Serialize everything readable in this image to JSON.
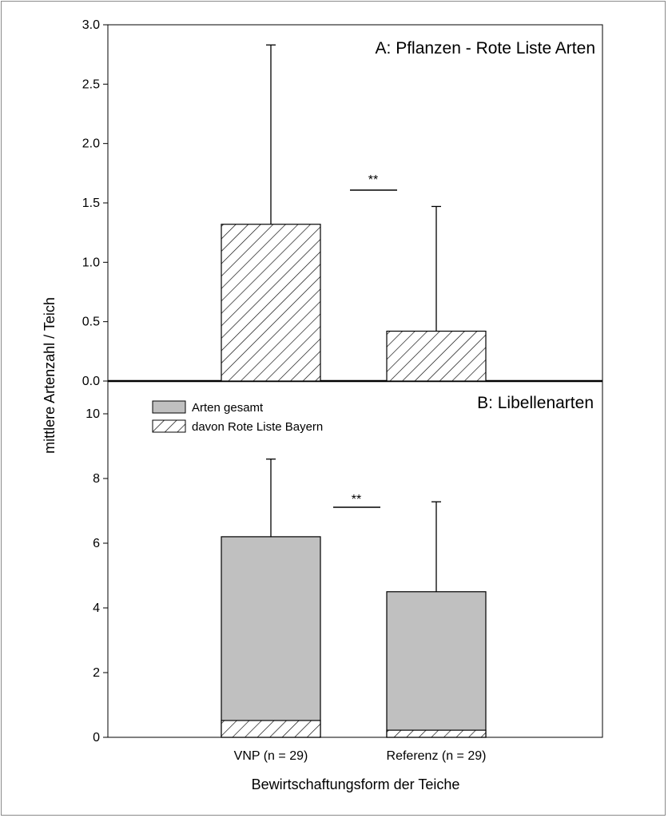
{
  "chart_data": [
    {
      "type": "bar",
      "title": "A: Pflanzen - Rote Liste Arten",
      "categories": [
        "VNP (n = 29)",
        "Referenz (n = 29)"
      ],
      "series": [
        {
          "values": [
            1.32,
            0.42
          ],
          "error_plus": [
            1.51,
            1.05
          ],
          "pattern": "hatched"
        }
      ],
      "ylim": [
        0,
        3.0
      ],
      "yticks": [
        "0.0",
        "0.5",
        "1.0",
        "1.5",
        "2.0",
        "2.5",
        "3.0"
      ],
      "annotation": "**"
    },
    {
      "type": "bar",
      "stacked": true,
      "title": "B: Libellenarten",
      "categories": [
        "VNP (n = 29)",
        "Referenz (n = 29)"
      ],
      "series": [
        {
          "name": "Arten gesamt",
          "values": [
            6.2,
            4.5
          ],
          "error_plus": [
            2.4,
            2.78
          ],
          "pattern": "solid",
          "color": "#c0c0c0"
        },
        {
          "name": "davon Rote Liste Bayern",
          "values": [
            0.52,
            0.22
          ],
          "pattern": "hatched"
        }
      ],
      "ylim": [
        0,
        11
      ],
      "yticks": [
        "0",
        "2",
        "4",
        "6",
        "8",
        "10"
      ],
      "legend_position": "top-left",
      "annotation": "**"
    }
  ],
  "axes": {
    "ylabel": "mittlere Artenzahl / Teich",
    "xlabel": "Bewirtschaftungsform der Teiche",
    "xticks": [
      "VNP (n = 29)",
      "Referenz (n = 29)"
    ]
  },
  "colors": {
    "bar_fill": "#c0c0c0",
    "stroke": "#000000",
    "frame": "#8a8a8a"
  }
}
